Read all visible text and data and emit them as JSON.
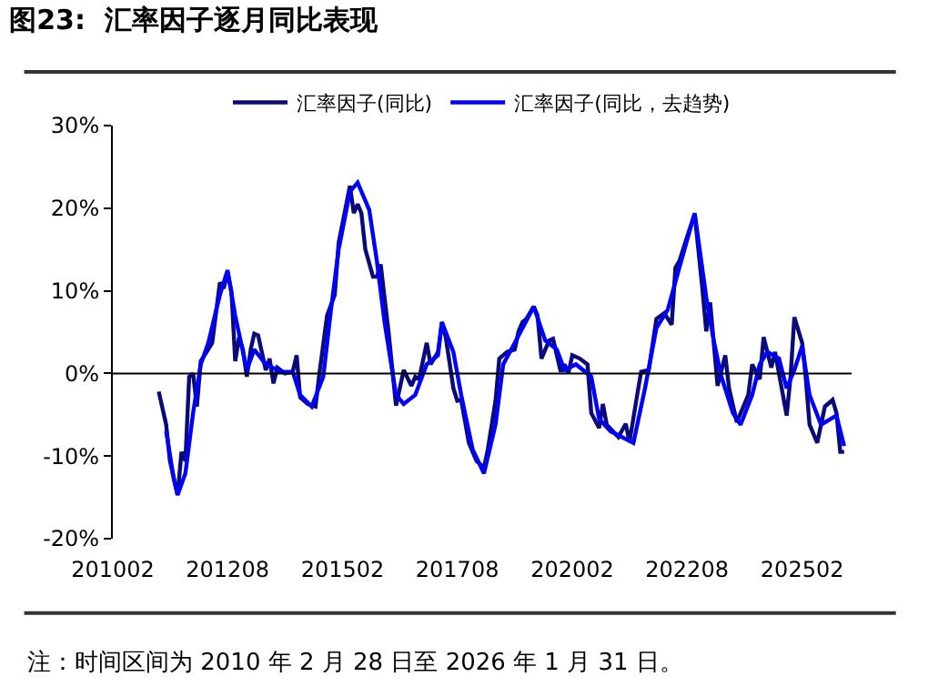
{
  "chart_data": {
    "type": "line",
    "title": "图23:  汇率因子逐月同比表现",
    "annotations": [
      "注：时间区间为 2010 年 2 月 28 日至 2026 年 1 月 31 日。"
    ],
    "legend": "top",
    "marker": "none",
    "line_style": "solid",
    "xlim": [
      "2010-02",
      "2026-03"
    ],
    "xticks": [
      {
        "value": "2010-02",
        "label": "201002"
      },
      {
        "value": "2012-08",
        "label": "201208"
      },
      {
        "value": "2015-02",
        "label": "201502"
      },
      {
        "value": "2017-08",
        "label": "201708"
      },
      {
        "value": "2020-02",
        "label": "202002"
      },
      {
        "value": "2022-08",
        "label": "202208"
      },
      {
        "value": "2025-02",
        "label": "202502"
      }
    ],
    "ylim": [
      -20,
      30
    ],
    "yticks": [
      {
        "value": -20,
        "label": "-20%"
      },
      {
        "value": -10,
        "label": "-10%"
      },
      {
        "value": 0,
        "label": "0%"
      },
      {
        "value": 10,
        "label": "10%"
      },
      {
        "value": 20,
        "label": "20%"
      },
      {
        "value": 30,
        "label": "30%"
      }
    ],
    "ref_lines": [
      {
        "axis": "y",
        "value": 0,
        "label": null,
        "color": "#000000"
      }
    ],
    "series": [
      {
        "name": "汇率因子(同比)",
        "color": "#0a0a78",
        "x": [
          "2011-02",
          "2011-04",
          "2011-05",
          "2011-07",
          "2011-08",
          "2011-09",
          "2011-10",
          "2011-11",
          "2011-12",
          "2012-01",
          "2012-02",
          "2012-04",
          "2012-06",
          "2012-07",
          "2012-08",
          "2012-09",
          "2012-10",
          "2012-11",
          "2012-12",
          "2013-01",
          "2013-02",
          "2013-03",
          "2013-04",
          "2013-06",
          "2013-07",
          "2013-08",
          "2013-09",
          "2013-11",
          "2014-01",
          "2014-02",
          "2014-03",
          "2014-05",
          "2014-07",
          "2014-08",
          "2014-10",
          "2014-12",
          "2015-01",
          "2015-04",
          "2015-05",
          "2015-06",
          "2015-07",
          "2015-08",
          "2015-10",
          "2015-11",
          "2015-12",
          "2016-02",
          "2016-04",
          "2016-05",
          "2016-06",
          "2016-08",
          "2016-09",
          "2016-10",
          "2016-11",
          "2016-12",
          "2017-01",
          "2017-03",
          "2017-04",
          "2017-05",
          "2017-07",
          "2017-08",
          "2017-09",
          "2017-11",
          "2018-01",
          "2018-03",
          "2018-04",
          "2018-06",
          "2018-07",
          "2018-09",
          "2018-11",
          "2018-12",
          "2019-01",
          "2019-02",
          "2019-04",
          "2019-05",
          "2019-06",
          "2019-08",
          "2019-09",
          "2019-11",
          "2019-12",
          "2020-01",
          "2020-02",
          "2020-04",
          "2020-06",
          "2020-07",
          "2020-09",
          "2020-10",
          "2020-11",
          "2021-02",
          "2021-04",
          "2021-05",
          "2021-07",
          "2021-08",
          "2021-10",
          "2021-12",
          "2022-02",
          "2022-04",
          "2022-05",
          "2022-06",
          "2022-08",
          "2022-10",
          "2022-12",
          "2023-01",
          "2023-02",
          "2023-04",
          "2023-06",
          "2023-07",
          "2023-09",
          "2023-12",
          "2024-01",
          "2024-03",
          "2024-04",
          "2024-06",
          "2024-07",
          "2024-10",
          "2024-11",
          "2024-12",
          "2025-02",
          "2025-03",
          "2025-04",
          "2025-06",
          "2025-08",
          "2025-10",
          "2025-11",
          "2025-12",
          "2026-01"
        ],
        "values": [
          -2.2,
          -6.2,
          -10.6,
          -14.7,
          -9.5,
          -10.6,
          -0.4,
          0,
          -4,
          1.5,
          2.2,
          3.7,
          11,
          10.3,
          12.2,
          9.9,
          1.5,
          4.4,
          2.9,
          -0.4,
          2.9,
          4.8,
          4.6,
          0.4,
          1.8,
          -1.2,
          0.7,
          0,
          0.2,
          2.2,
          -2.9,
          -3.7,
          -4,
          0,
          7,
          9.5,
          15.8,
          22.7,
          19.4,
          20.5,
          19.4,
          15,
          11.7,
          11.7,
          13.2,
          5.1,
          -3.9,
          -1.8,
          0.4,
          -1.5,
          -0.4,
          -0.7,
          1.5,
          3.7,
          1.1,
          2.6,
          6.2,
          4.4,
          -1.8,
          -3.3,
          -3.2,
          -8.4,
          -10.6,
          -11.4,
          -9.2,
          -3.3,
          1.8,
          2.6,
          2.9,
          5.1,
          6.2,
          6.6,
          8.1,
          7,
          1.8,
          4,
          4.2,
          0.2,
          1.1,
          0,
          2.2,
          1.8,
          1.1,
          -4.8,
          -6.6,
          -3.7,
          -6.2,
          -7.7,
          -6.1,
          -8.3,
          -2.6,
          0.2,
          0.4,
          6.6,
          7.3,
          5.9,
          12.8,
          13.6,
          16.5,
          19.3,
          10.3,
          5.1,
          8.6,
          -1.5,
          2.2,
          -1.8,
          -5.9,
          -2.6,
          1.1,
          -0.7,
          4.4,
          0.7,
          2.6,
          -5.1,
          -0.4,
          6.8,
          3.7,
          -0.4,
          -6.2,
          -8.4,
          -4,
          -3.2,
          -4.8,
          -9.5,
          -9.5
        ]
      },
      {
        "name": "汇率因子(同比，去趋势)",
        "color": "#0000ff",
        "x": [
          "2011-04",
          "2011-06",
          "2011-07",
          "2011-09",
          "2011-11",
          "2012-01",
          "2012-03",
          "2012-06",
          "2012-08",
          "2012-10",
          "2013-01",
          "2013-03",
          "2013-06",
          "2013-10",
          "2014-01",
          "2014-03",
          "2014-06",
          "2014-09",
          "2014-11",
          "2015-01",
          "2015-04",
          "2015-06",
          "2015-09",
          "2015-11",
          "2016-01",
          "2016-04",
          "2016-06",
          "2016-09",
          "2016-12",
          "2017-03",
          "2017-04",
          "2017-07",
          "2017-09",
          "2017-12",
          "2018-03",
          "2018-06",
          "2018-08",
          "2018-11",
          "2019-04",
          "2019-07",
          "2019-10",
          "2019-12",
          "2020-03",
          "2020-07",
          "2020-09",
          "2020-12",
          "2021-03",
          "2021-06",
          "2021-09",
          "2021-12",
          "2022-03",
          "2022-06",
          "2022-08",
          "2022-10",
          "2023-01",
          "2023-03",
          "2023-05",
          "2023-08",
          "2023-10",
          "2024-01",
          "2024-03",
          "2024-05",
          "2024-08",
          "2024-10",
          "2024-12",
          "2025-02",
          "2025-04",
          "2025-07",
          "2025-11",
          "2026-01"
        ],
        "values": [
          -7,
          -12.8,
          -14.7,
          -12.1,
          -4.8,
          1.1,
          3.7,
          9.5,
          12.5,
          7,
          0.4,
          2.9,
          1.1,
          0.2,
          0.2,
          -2.6,
          -4,
          -0.4,
          7.7,
          15,
          22,
          23.1,
          19.8,
          13.6,
          6.2,
          -2.6,
          -3.7,
          -2.6,
          1.1,
          2.2,
          6.2,
          2.6,
          -2.6,
          -9.2,
          -12.1,
          -6.2,
          1.1,
          3.7,
          8.1,
          4,
          2.9,
          0.4,
          1.1,
          -0.4,
          -5.5,
          -7,
          -7.7,
          -8.4,
          -1.8,
          5.5,
          7.7,
          12.8,
          16.1,
          19.4,
          9.2,
          4,
          -0.4,
          -4.8,
          -6.2,
          -2.6,
          1.1,
          2.6,
          1.8,
          -1.8,
          0.4,
          3.3,
          -2.6,
          -6.2,
          -5.1,
          -8.8
        ]
      }
    ]
  }
}
